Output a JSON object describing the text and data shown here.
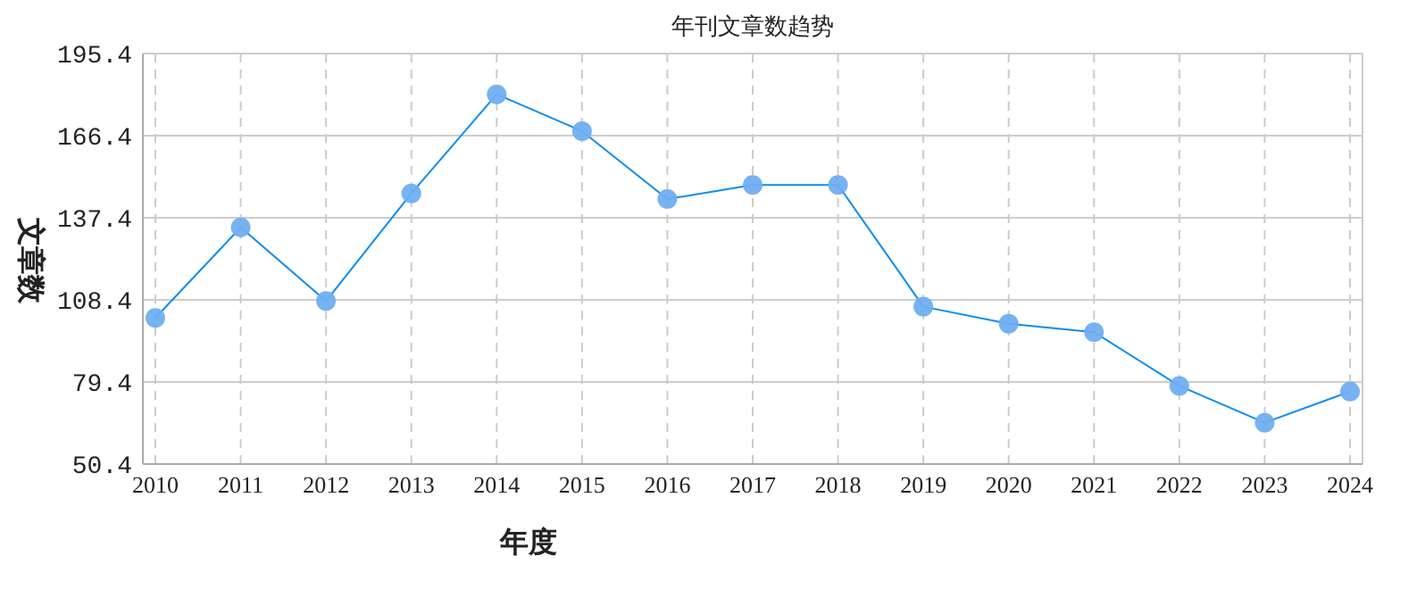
{
  "chart_data": {
    "type": "line",
    "title": "年刊文章数趋势",
    "xlabel": "年度",
    "ylabel": "文章数",
    "categories": [
      "2010",
      "2011",
      "2012",
      "2013",
      "2014",
      "2015",
      "2016",
      "2017",
      "2018",
      "2019",
      "2020",
      "2021",
      "2022",
      "2023",
      "2024"
    ],
    "series": [
      {
        "color": "#0a8cf0",
        "values": [
          102,
          134,
          108,
          146,
          181,
          168,
          144,
          149,
          149,
          106,
          100,
          97,
          78,
          65,
          76
        ]
      }
    ],
    "ylim": [
      50.4,
      195.4
    ],
    "yticks": [
      50.4,
      79.4,
      108.4,
      137.4,
      166.4,
      195.4
    ],
    "grid": true,
    "marker": "circle",
    "line_style": "solid"
  }
}
